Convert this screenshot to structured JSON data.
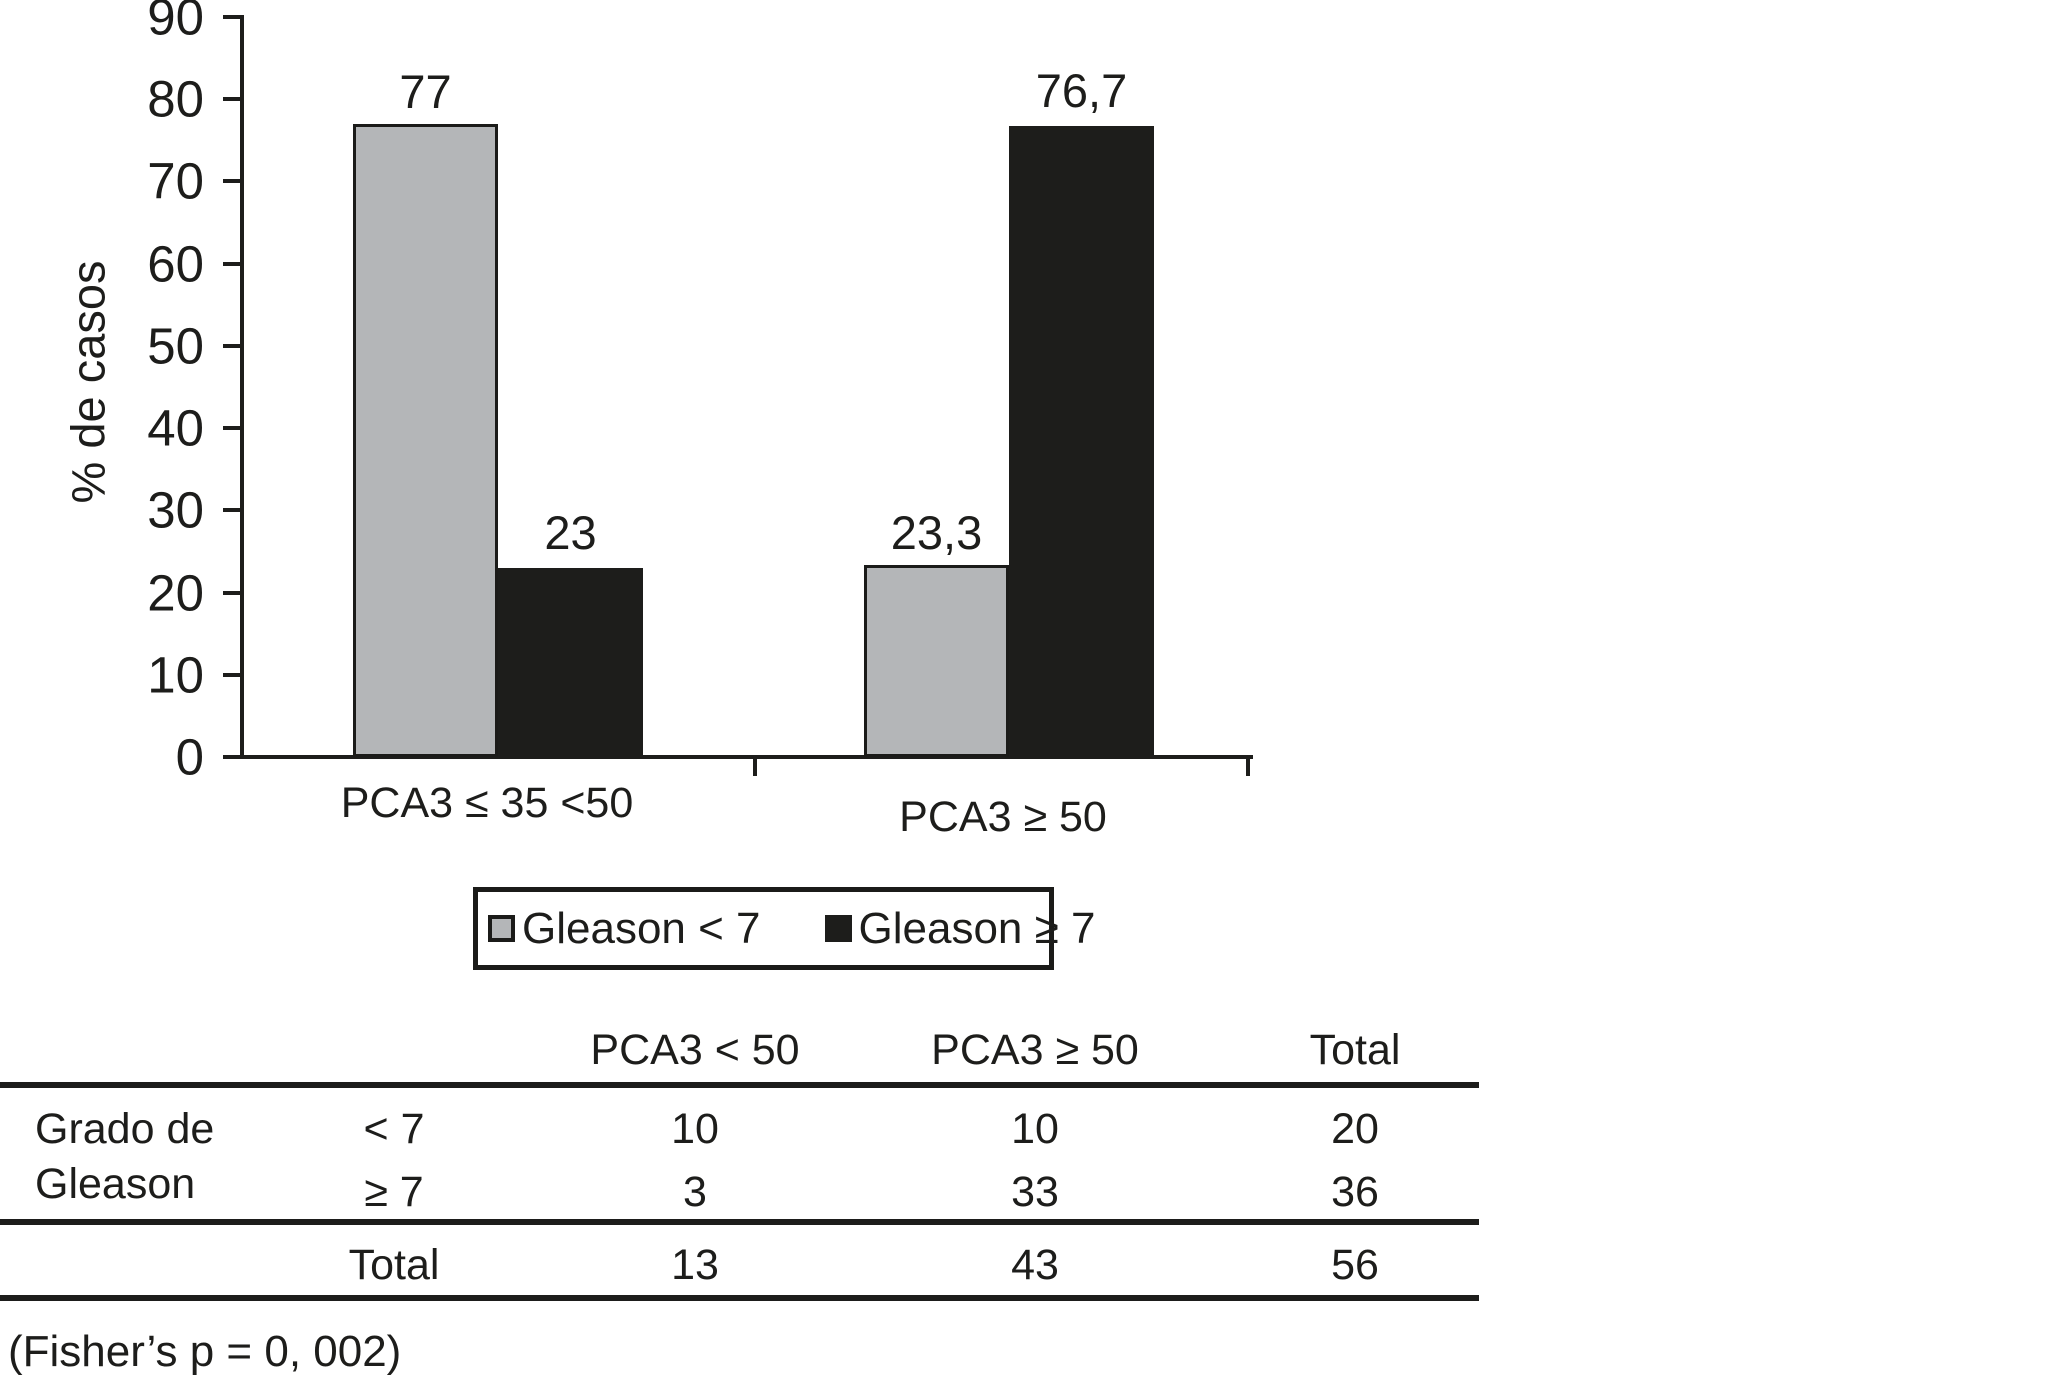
{
  "chart_data": {
    "type": "bar",
    "title": "",
    "xlabel": "",
    "ylabel": "% de casos",
    "ylim": [
      0,
      90
    ],
    "yticks": [
      0,
      10,
      20,
      30,
      40,
      50,
      60,
      70,
      80,
      90
    ],
    "grid": false,
    "legend_position": "bottom",
    "categories": [
      "PCA3 ≤ 35 <50",
      "PCA3 ≥ 50"
    ],
    "series": [
      {
        "name": "Gleason < 7",
        "color": "#b4b6b8",
        "values": [
          77,
          23.3
        ],
        "value_labels": [
          "77",
          "23,3"
        ]
      },
      {
        "name": "Gleason ≥ 7",
        "color": "#1d1d1b",
        "values": [
          23,
          76.7
        ],
        "value_labels": [
          "23",
          "76,7"
        ]
      }
    ]
  },
  "table": {
    "col_headers": [
      "PCA3 < 50",
      "PCA3 ≥ 50",
      "Total"
    ],
    "row_group_label": [
      "Grado de",
      "Gleason"
    ],
    "rows": [
      {
        "label": "< 7",
        "values": [
          "10",
          "10",
          "20"
        ]
      },
      {
        "label": "≥ 7",
        "values": [
          "3",
          "33",
          "36"
        ]
      }
    ],
    "total_row": {
      "label": "Total",
      "values": [
        "13",
        "43",
        "56"
      ]
    }
  },
  "footnote": "(Fisher’s p = 0, 002)"
}
